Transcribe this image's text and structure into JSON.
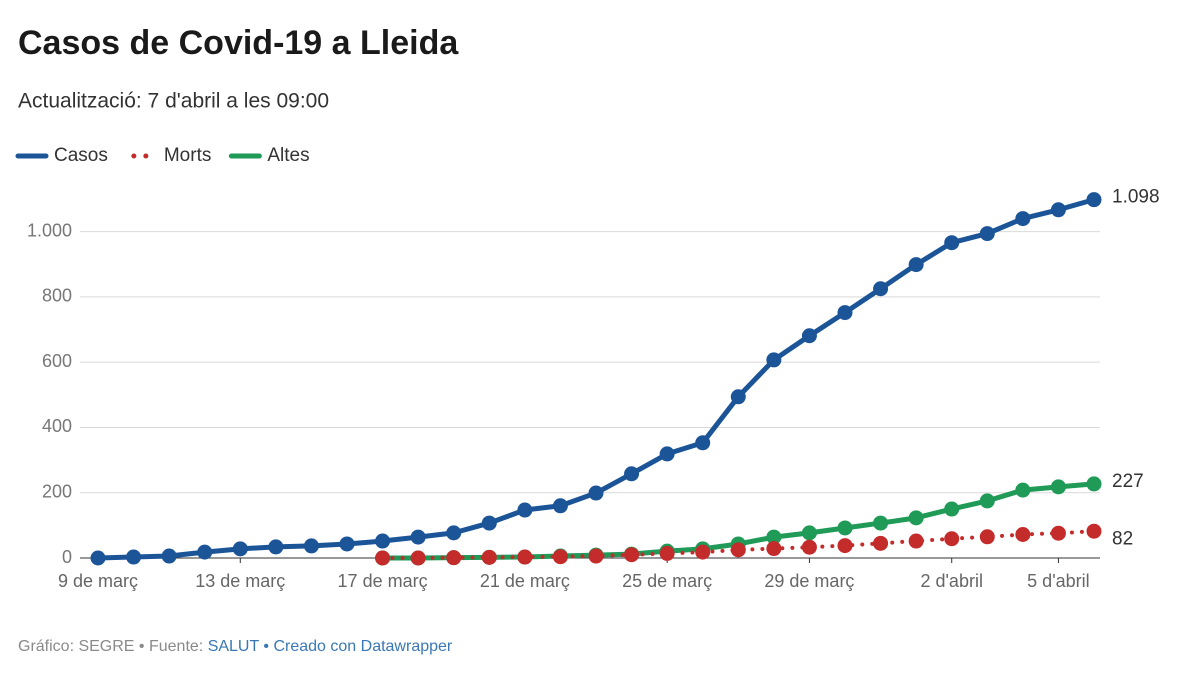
{
  "chart_data": {
    "type": "line",
    "title": "Casos de Covid-19 a Lleida",
    "subtitle": "Actualització: 7 d'abril a les 09:00",
    "categories": [
      "9 de març",
      null,
      null,
      null,
      "13 de març",
      null,
      null,
      null,
      "17 de març",
      null,
      null,
      null,
      "21 de març",
      null,
      null,
      null,
      "25 de març",
      null,
      null,
      null,
      "29 de març",
      null,
      null,
      null,
      "2 d'abril",
      null,
      null,
      "5 d'abril",
      null
    ],
    "series": [
      {
        "name": "Casos",
        "color": "#1b5497",
        "dash": "solid",
        "values": [
          0,
          3,
          6,
          18,
          28,
          34,
          37,
          43,
          52,
          64,
          77,
          107,
          147,
          160,
          199,
          258,
          319,
          353,
          494,
          607,
          681,
          752,
          825,
          899,
          966,
          994,
          1040,
          1067,
          1098
        ],
        "value_labels": [
          null,
          null,
          null,
          null,
          null,
          null,
          null,
          null,
          null,
          null,
          null,
          null,
          null,
          null,
          null,
          null,
          null,
          null,
          null,
          null,
          null,
          null,
          null,
          null,
          null,
          null,
          null,
          null,
          "1.098"
        ]
      },
      {
        "name": "Morts",
        "color": "#c42b2b",
        "dash": "dotted",
        "values": [
          null,
          null,
          null,
          null,
          null,
          null,
          null,
          null,
          0,
          0,
          1,
          2,
          3,
          4,
          6,
          10,
          14,
          18,
          25,
          29,
          33,
          38,
          45,
          52,
          59,
          65,
          72,
          76,
          82
        ]
      },
      {
        "name": "Altes",
        "color": "#1f9a57",
        "dash": "solid",
        "values": [
          null,
          null,
          null,
          null,
          null,
          null,
          null,
          null,
          0,
          0,
          1,
          2,
          3,
          6,
          9,
          12,
          21,
          28,
          43,
          64,
          77,
          92,
          107,
          123,
          150,
          175,
          208,
          218,
          227
        ]
      }
    ],
    "ylim": [
      0,
      1100
    ],
    "yticks": [
      0,
      200,
      400,
      600,
      800,
      {
        "value": 1000,
        "label": "1.000"
      }
    ],
    "grid": true,
    "legend": "top-left"
  },
  "footer": [
    "Gráfico: SEGRE • Fuente:",
    "SALUT",
    "• Creado con Datawrapper"
  ]
}
